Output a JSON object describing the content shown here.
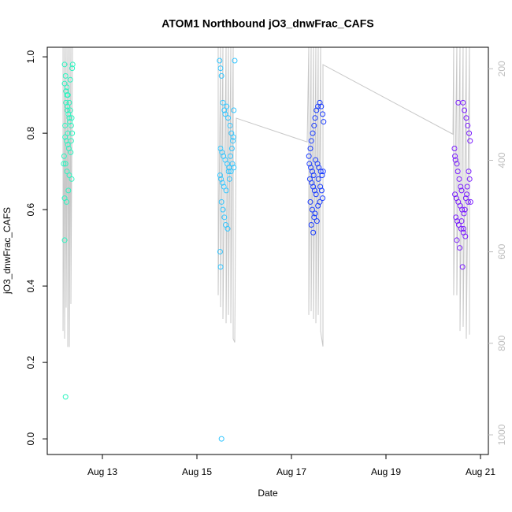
{
  "chart_data": {
    "type": "scatter",
    "title": "ATOM1 Northbound jO3_dnwFrac_CAFS",
    "x_label": "Date",
    "y_label": "jO3_dnwFrac_CAFS",
    "xlim": [
      11.833,
      21.167
    ],
    "ylim": [
      -0.041,
      1.025
    ],
    "y2lim": [
      1043,
      153
    ],
    "xticks": [
      {
        "value": 13,
        "label": "Aug 13"
      },
      {
        "value": 15,
        "label": "Aug 15"
      },
      {
        "value": 17,
        "label": "Aug 17"
      },
      {
        "value": 19,
        "label": "Aug 19"
      },
      {
        "value": 21,
        "label": "Aug 21"
      }
    ],
    "yticks": [
      {
        "value": 0,
        "label": "0.0"
      },
      0.2,
      0.4,
      0.6,
      0.8,
      {
        "value": 1,
        "label": "1.0"
      }
    ],
    "y2ticks": [
      200,
      400,
      600,
      800,
      1000
    ],
    "y2_color": "#bebebe",
    "series": [
      {
        "color": "#2cf5c0",
        "x": [
          12.2,
          12.22,
          12.25,
          12.27,
          12.3,
          12.32,
          12.35,
          12.2,
          12.23,
          12.26,
          12.28,
          12.31,
          12.34,
          12.36,
          12.21,
          12.24,
          12.27,
          12.29,
          12.33,
          12.19,
          12.22,
          12.25,
          12.3,
          12.35,
          12.18,
          12.2,
          12.24,
          12.28,
          12.32,
          12.36,
          12.23,
          12.26,
          12.3,
          12.21,
          12.27,
          12.34,
          12.25,
          12.2,
          12.37,
          12.22
        ],
        "values": [
          0.98,
          0.95,
          0.92,
          0.9,
          0.88,
          0.86,
          0.84,
          0.93,
          0.91,
          0.87,
          0.85,
          0.83,
          0.82,
          0.8,
          0.79,
          0.78,
          0.77,
          0.76,
          0.75,
          0.74,
          0.72,
          0.7,
          0.69,
          0.68,
          0.72,
          0.63,
          0.62,
          0.65,
          0.94,
          0.97,
          0.88,
          0.86,
          0.84,
          0.82,
          0.8,
          0.78,
          0.9,
          0.52,
          0.98,
          0.11
        ]
      },
      {
        "color": "#33c6ff",
        "x": [
          15.48,
          15.5,
          15.52,
          15.55,
          15.58,
          15.6,
          15.63,
          15.66,
          15.7,
          15.73,
          15.76,
          15.78,
          15.5,
          15.53,
          15.56,
          15.6,
          15.64,
          15.68,
          15.72,
          15.75,
          15.49,
          15.51,
          15.54,
          15.57,
          15.62,
          15.67,
          15.71,
          15.74,
          15.77,
          15.52,
          15.55,
          15.58,
          15.61,
          15.65,
          15.69,
          15.8,
          15.49,
          15.5,
          15.52,
          15.78
        ],
        "values": [
          0.99,
          0.97,
          0.95,
          0.88,
          0.86,
          0.85,
          0.87,
          0.84,
          0.82,
          0.8,
          0.78,
          0.86,
          0.76,
          0.75,
          0.74,
          0.73,
          0.72,
          0.71,
          0.7,
          0.72,
          0.69,
          0.68,
          0.67,
          0.66,
          0.65,
          0.7,
          0.74,
          0.76,
          0.79,
          0.62,
          0.6,
          0.58,
          0.56,
          0.55,
          0.68,
          0.99,
          0.49,
          0.45,
          0.0,
          0.71
        ]
      },
      {
        "color": "#1a3cff",
        "x": [
          17.37,
          17.4,
          17.42,
          17.45,
          17.48,
          17.5,
          17.53,
          17.56,
          17.6,
          17.63,
          17.66,
          17.68,
          17.38,
          17.41,
          17.44,
          17.47,
          17.51,
          17.55,
          17.58,
          17.62,
          17.65,
          17.39,
          17.43,
          17.46,
          17.49,
          17.52,
          17.57,
          17.61,
          17.64,
          17.67,
          17.4,
          17.44,
          17.48,
          17.54,
          17.6,
          17.42,
          17.46,
          17.5,
          17.56,
          17.66
        ],
        "values": [
          0.74,
          0.76,
          0.78,
          0.8,
          0.82,
          0.84,
          0.86,
          0.87,
          0.88,
          0.87,
          0.85,
          0.83,
          0.72,
          0.71,
          0.7,
          0.69,
          0.73,
          0.72,
          0.71,
          0.7,
          0.69,
          0.68,
          0.67,
          0.66,
          0.65,
          0.64,
          0.68,
          0.66,
          0.65,
          0.7,
          0.62,
          0.6,
          0.58,
          0.57,
          0.62,
          0.56,
          0.54,
          0.59,
          0.61,
          0.63
        ]
      },
      {
        "color": "#7a1cff",
        "x": [
          20.45,
          20.47,
          20.5,
          20.52,
          20.55,
          20.58,
          20.6,
          20.63,
          20.66,
          20.7,
          20.73,
          20.76,
          20.78,
          20.46,
          20.49,
          20.53,
          20.57,
          20.61,
          20.65,
          20.69,
          20.72,
          20.75,
          20.48,
          20.51,
          20.54,
          20.59,
          20.64,
          20.68,
          20.74,
          20.77,
          20.5,
          20.56,
          20.62,
          20.67,
          20.71,
          20.53,
          20.6,
          20.64,
          20.79,
          20.46
        ],
        "values": [
          0.76,
          0.73,
          0.72,
          0.7,
          0.68,
          0.66,
          0.65,
          0.88,
          0.86,
          0.84,
          0.82,
          0.8,
          0.78,
          0.64,
          0.63,
          0.62,
          0.61,
          0.6,
          0.59,
          0.63,
          0.66,
          0.7,
          0.58,
          0.57,
          0.56,
          0.55,
          0.54,
          0.53,
          0.62,
          0.68,
          0.52,
          0.5,
          0.45,
          0.6,
          0.64,
          0.88,
          0.57,
          0.55,
          0.62,
          0.74
        ]
      },
      {
        "type": "line",
        "axis": "y2",
        "color": "#c8c8c8",
        "x": [
          12.167,
          12.167,
          12.2,
          12.2,
          12.233,
          12.233,
          12.267,
          12.267,
          12.3,
          12.3,
          12.333,
          12.333,
          12.367,
          null,
          15.45,
          15.45,
          15.5,
          15.5,
          15.55,
          15.55,
          15.617,
          15.617,
          15.667,
          15.667,
          15.717,
          15.717,
          15.767,
          15.767,
          15.8,
          15.833,
          17.333,
          17.367,
          17.367,
          17.417,
          17.417,
          17.467,
          17.467,
          17.517,
          17.517,
          17.567,
          17.567,
          17.617,
          17.617,
          17.667,
          17.667,
          20.417,
          20.433,
          20.433,
          20.5,
          20.5,
          20.567,
          20.567,
          20.633,
          20.633,
          20.7,
          20.7,
          20.767,
          20.767
        ],
        "values": [
          150,
          773,
          150,
          790,
          150,
          722,
          150,
          808,
          150,
          808,
          150,
          714,
          150,
          null,
          150,
          695,
          150,
          721,
          150,
          747,
          150,
          756,
          150,
          738,
          150,
          756,
          150,
          790,
          798,
          308,
          360,
          150,
          738,
          150,
          730,
          150,
          747,
          150,
          756,
          150,
          738,
          150,
          773,
          807,
          191,
          343,
          150,
          695,
          150,
          695,
          150,
          773,
          150,
          764,
          150,
          790,
          150,
          781
        ]
      }
    ]
  }
}
